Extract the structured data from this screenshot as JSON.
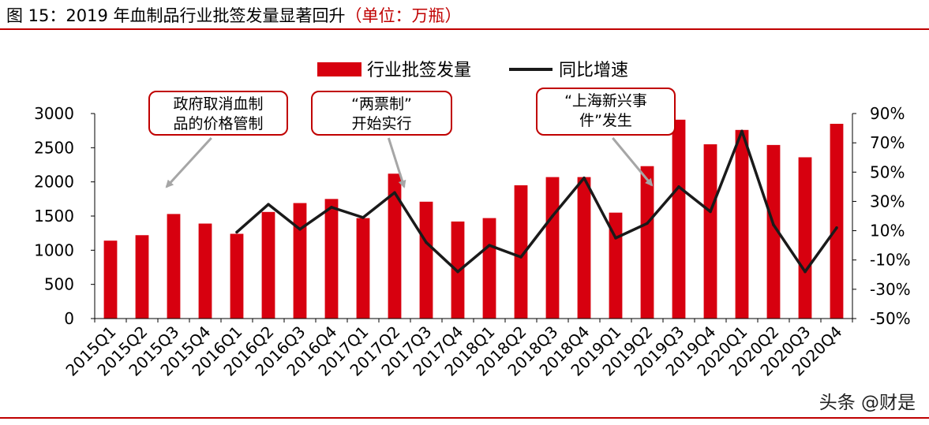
{
  "title": {
    "main": "图 15：2019 年血制品行业批签发量显著回升",
    "unit": "（单位：万瓶）"
  },
  "watermark": "头条 @财是",
  "colors": {
    "bar": "#d7000f",
    "line": "#1a1a1a",
    "accent": "#c00000",
    "annotation_border": "#c00000"
  },
  "chart_data": {
    "type": "bar",
    "categories": [
      "2015Q1",
      "2015Q2",
      "2015Q3",
      "2015Q4",
      "2016Q1",
      "2016Q2",
      "2016Q3",
      "2016Q4",
      "2017Q1",
      "2017Q2",
      "2017Q3",
      "2017Q4",
      "2018Q1",
      "2018Q2",
      "2018Q3",
      "2018Q4",
      "2019Q1",
      "2019Q2",
      "2019Q3",
      "2019Q4",
      "2020Q1",
      "2020Q2",
      "2020Q3",
      "2020Q4"
    ],
    "series": [
      {
        "name": "行业批签发量",
        "type": "bar",
        "axis": "left",
        "values": [
          1140,
          1220,
          1530,
          1390,
          1240,
          1560,
          1690,
          1750,
          1470,
          2120,
          1710,
          1420,
          1470,
          1950,
          2070,
          2070,
          1550,
          2230,
          2910,
          2550,
          2760,
          2540,
          2360,
          2850
        ]
      },
      {
        "name": "同比增速",
        "type": "line",
        "axis": "right",
        "values": [
          null,
          null,
          null,
          null,
          9,
          28,
          11,
          26,
          19,
          36,
          2,
          -18,
          0,
          -8,
          20,
          46,
          5,
          15,
          40,
          23,
          78,
          14,
          -18,
          12
        ]
      }
    ],
    "left_axis": {
      "ylim": [
        0,
        3000
      ],
      "ticks": [
        "0",
        "500",
        "1000",
        "1500",
        "2000",
        "2500",
        "3000"
      ]
    },
    "right_axis": {
      "ylim": [
        -50,
        90
      ],
      "ticks": [
        "-50%",
        "-30%",
        "-10%",
        "10%",
        "30%",
        "50%",
        "70%",
        "90%"
      ]
    },
    "legend": {
      "placement": "top-center"
    },
    "annotations": [
      {
        "lines": [
          "政府取消血制",
          "品的价格管制"
        ],
        "target_index": 2
      },
      {
        "lines": [
          "“两票制”",
          "开始实行"
        ],
        "target_index": 9
      },
      {
        "lines": [
          "“上海新兴事",
          "件”发生"
        ],
        "target_index": 17
      }
    ]
  }
}
